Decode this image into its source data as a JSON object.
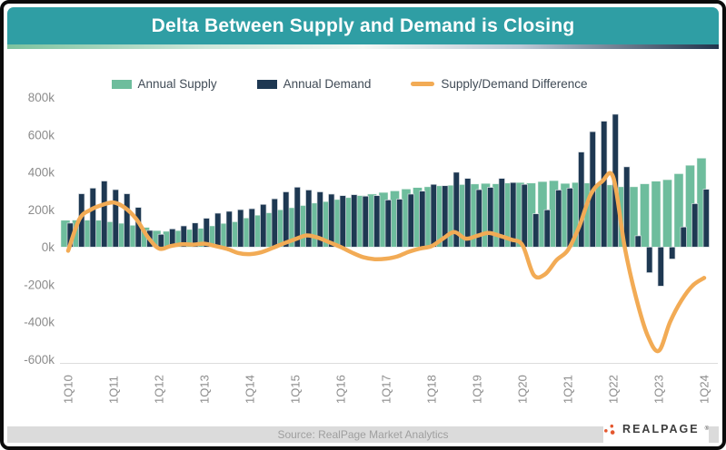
{
  "header": {
    "title": "Delta Between Supply and Demand is Closing"
  },
  "legend": {
    "supply": "Annual Supply",
    "demand": "Annual Demand",
    "difference": "Supply/Demand Difference"
  },
  "footer": {
    "source": "Source: RealPage Market Analytics",
    "logo_text": "REALPAGE",
    "logo_reg": "®"
  },
  "colors": {
    "header_teal": "#2f9ea4",
    "supply_green": "#6ebd9d",
    "demand_navy": "#1e3852",
    "difference_orange": "#f2ab55",
    "axis_gray": "#8c8c8c",
    "footer_gray": "#dbdbdb",
    "logo_dot_orange": "#e4572e"
  },
  "chart_data": {
    "type": "bar",
    "title": "Delta Between Supply and Demand is Closing",
    "units": "units (thousands, shown as k)",
    "grid": false,
    "legend_position": "top",
    "ylim": [
      -600,
      800
    ],
    "y_tick_labels": [
      "800k",
      "600k",
      "400k",
      "200k",
      "0k",
      "-200k",
      "-400k",
      "-600k"
    ],
    "x_tick_labels": [
      "1Q10",
      "1Q11",
      "1Q12",
      "1Q13",
      "1Q14",
      "1Q15",
      "1Q16",
      "1Q17",
      "1Q18",
      "1Q19",
      "1Q20",
      "1Q21",
      "1Q22",
      "1Q23",
      "1Q24"
    ],
    "categories": [
      "1Q10",
      "2Q10",
      "3Q10",
      "4Q10",
      "1Q11",
      "2Q11",
      "3Q11",
      "4Q11",
      "1Q12",
      "2Q12",
      "3Q12",
      "4Q12",
      "1Q13",
      "2Q13",
      "3Q13",
      "4Q13",
      "1Q14",
      "2Q14",
      "3Q14",
      "4Q14",
      "1Q15",
      "2Q15",
      "3Q15",
      "4Q15",
      "1Q16",
      "2Q16",
      "3Q16",
      "4Q16",
      "1Q17",
      "2Q17",
      "3Q17",
      "4Q17",
      "1Q18",
      "2Q18",
      "3Q18",
      "4Q18",
      "1Q19",
      "2Q19",
      "3Q19",
      "4Q19",
      "1Q20",
      "2Q20",
      "3Q20",
      "4Q20",
      "1Q21",
      "2Q21",
      "3Q21",
      "4Q21",
      "1Q22",
      "2Q22",
      "3Q22",
      "4Q22",
      "1Q23",
      "2Q23",
      "3Q23",
      "4Q23",
      "1Q24"
    ],
    "series": [
      {
        "name": "Annual Supply",
        "type": "bar",
        "color": "#6ebd9d",
        "values": [
          143,
          144,
          144,
          143,
          135,
          127,
          116,
          105,
          88,
          84,
          88,
          94,
          100,
          113,
          126,
          135,
          155,
          170,
          183,
          199,
          210,
          222,
          235,
          243,
          254,
          264,
          275,
          283,
          292,
          300,
          310,
          318,
          322,
          327,
          330,
          334,
          337,
          340,
          338,
          342,
          345,
          342,
          350,
          355,
          340,
          345,
          342,
          335,
          332,
          322,
          322,
          338,
          352,
          360,
          392,
          437,
          475
        ]
      },
      {
        "name": "Annual Demand",
        "type": "bar",
        "color": "#1e3852",
        "values": [
          128,
          285,
          315,
          353,
          307,
          285,
          212,
          89,
          68,
          97,
          113,
          129,
          154,
          181,
          191,
          200,
          205,
          228,
          258,
          295,
          320,
          305,
          295,
          283,
          275,
          280,
          272,
          275,
          252,
          256,
          283,
          299,
          335,
          328,
          400,
          367,
          307,
          319,
          367,
          345,
          335,
          178,
          199,
          305,
          315,
          508,
          617,
          673,
          710,
          429,
          60,
          -137,
          -209,
          -64,
          107,
          232,
          309
        ]
      },
      {
        "name": "Supply/Demand Difference",
        "type": "line",
        "color": "#f2ab55",
        "values": [
          -20,
          150,
          200,
          225,
          238,
          210,
          150,
          55,
          -8,
          5,
          15,
          13,
          18,
          5,
          -10,
          -32,
          -38,
          -28,
          -5,
          20,
          42,
          62,
          50,
          25,
          0,
          -30,
          -55,
          -65,
          -62,
          -50,
          -25,
          -8,
          5,
          45,
          80,
          45,
          60,
          75,
          60,
          40,
          10,
          -150,
          -145,
          -70,
          -16,
          110,
          280,
          350,
          372,
          0,
          -270,
          -470,
          -555,
          -400,
          -285,
          -205,
          -165
        ]
      }
    ]
  }
}
